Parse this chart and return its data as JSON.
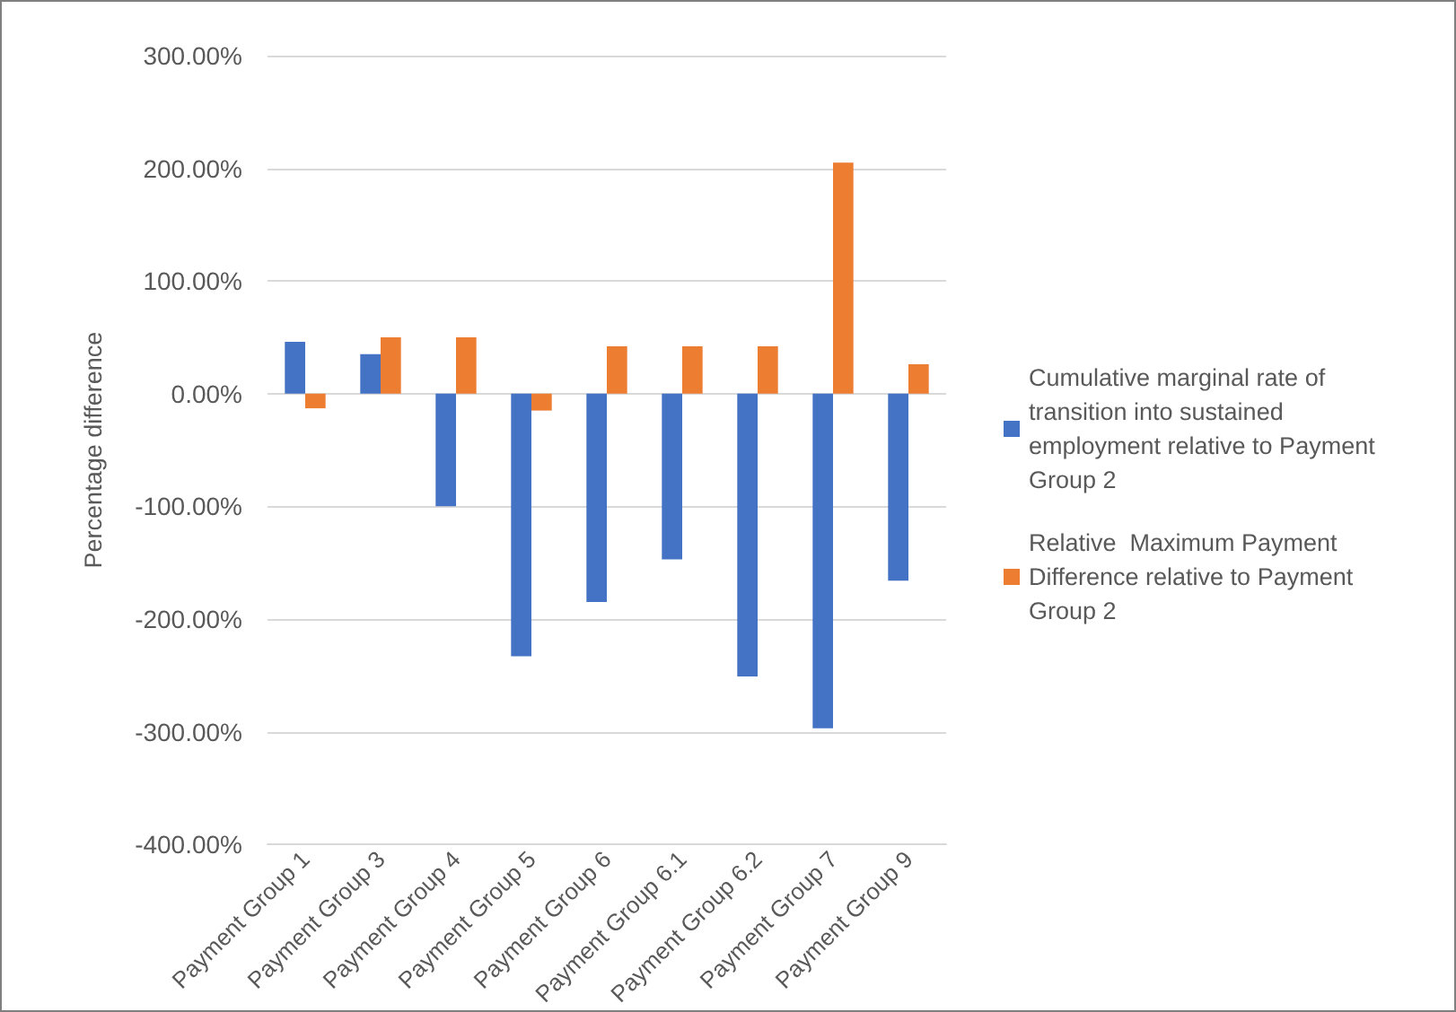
{
  "chart_data": {
    "type": "bar",
    "ylabel": "Percentage difference",
    "categories": [
      "Payment Group 1",
      "Payment Group 3",
      "Payment Group 4",
      "Payment Group 5",
      "Payment Group 6",
      "Payment Group 6.1",
      "Payment Group 6.2",
      "Payment Group 7",
      "Payment Group 9"
    ],
    "series": [
      {
        "name": "Cumulative marginal rate of transition into sustained employment relative to Payment Group 2",
        "color": "#4472c4",
        "values": [
          46,
          35,
          -100,
          -233,
          -185,
          -147,
          -251,
          -297,
          -166
        ]
      },
      {
        "name": "Relative  Maximum Payment Difference relative to Payment Group 2",
        "color": "#ed7d31",
        "values": [
          -13,
          50,
          50,
          -15,
          42,
          42,
          42,
          205,
          26
        ]
      }
    ],
    "ylim": [
      -400,
      300
    ],
    "yticks": [
      {
        "value": -400,
        "label": "-400.00%"
      },
      {
        "value": -300,
        "label": "-300.00%"
      },
      {
        "value": -200,
        "label": "-200.00%"
      },
      {
        "value": -100,
        "label": "-100.00%"
      },
      {
        "value": 0,
        "label": "0.00%"
      },
      {
        "value": 100,
        "label": "100.00%"
      },
      {
        "value": 200,
        "label": "200.00%"
      },
      {
        "value": 300,
        "label": "300.00%"
      }
    ],
    "grid": "y",
    "legend": "right"
  }
}
